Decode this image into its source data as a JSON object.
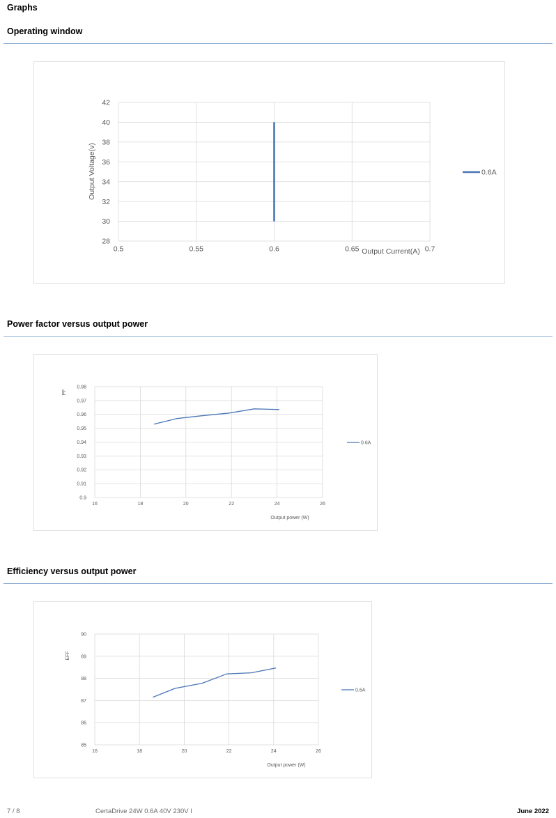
{
  "page": {
    "heading": "Graphs",
    "sections": [
      {
        "title": "Operating window"
      },
      {
        "title": "Power factor versus output power"
      },
      {
        "title": "Efficiency versus output power"
      }
    ]
  },
  "colors": {
    "series": "#4a76b5",
    "grid": "#d9d9d9",
    "rule": "#8fb0d3"
  },
  "chart_data": [
    {
      "type": "line",
      "title": "",
      "xlabel": "Output Current(A)",
      "ylabel": "Output Voltage(v)",
      "xlim": [
        0.5,
        0.7
      ],
      "ylim": [
        28,
        42
      ],
      "x_ticks": [
        "0.5",
        "0.55",
        "0.6",
        "0.65",
        "0.7"
      ],
      "y_ticks": [
        "28",
        "30",
        "32",
        "34",
        "36",
        "38",
        "40",
        "42"
      ],
      "grid": true,
      "legend": "right",
      "series": [
        {
          "name": "0.6A",
          "x": [
            0.6,
            0.6
          ],
          "y": [
            30,
            40
          ]
        }
      ]
    },
    {
      "type": "line",
      "title": "",
      "xlabel": "Output power (W)",
      "ylabel": "PF",
      "xlim": [
        16,
        26
      ],
      "ylim": [
        0.9,
        0.98
      ],
      "x_ticks": [
        "16",
        "18",
        "20",
        "22",
        "24",
        "26"
      ],
      "y_ticks": [
        "0.9",
        "0.91",
        "0.92",
        "0.93",
        "0.94",
        "0.95",
        "0.96",
        "0.97",
        "0.98"
      ],
      "grid": true,
      "legend": "right",
      "series": [
        {
          "name": "0.6A",
          "x": [
            18.6,
            19.6,
            20.7,
            21.9,
            23.0,
            24.1
          ],
          "y": [
            0.953,
            0.957,
            0.959,
            0.961,
            0.964,
            0.9635
          ]
        }
      ]
    },
    {
      "type": "line",
      "title": "",
      "xlabel": "Output power (W)",
      "ylabel": "EFF",
      "xlim": [
        16,
        26
      ],
      "ylim": [
        85,
        90
      ],
      "x_ticks": [
        "16",
        "18",
        "20",
        "22",
        "24",
        "26"
      ],
      "y_ticks": [
        "85",
        "86",
        "87",
        "88",
        "89",
        "90"
      ],
      "grid": true,
      "legend": "right",
      "series": [
        {
          "name": "0.6A",
          "x": [
            18.6,
            19.6,
            20.8,
            21.9,
            23.0,
            24.1
          ],
          "y": [
            87.15,
            87.55,
            87.78,
            88.2,
            88.25,
            88.47
          ]
        }
      ]
    }
  ],
  "footer": {
    "page_number": "7 / 8",
    "product": "CertaDrive 24W 0.6A 40V 230V I",
    "date": "June 2022"
  }
}
